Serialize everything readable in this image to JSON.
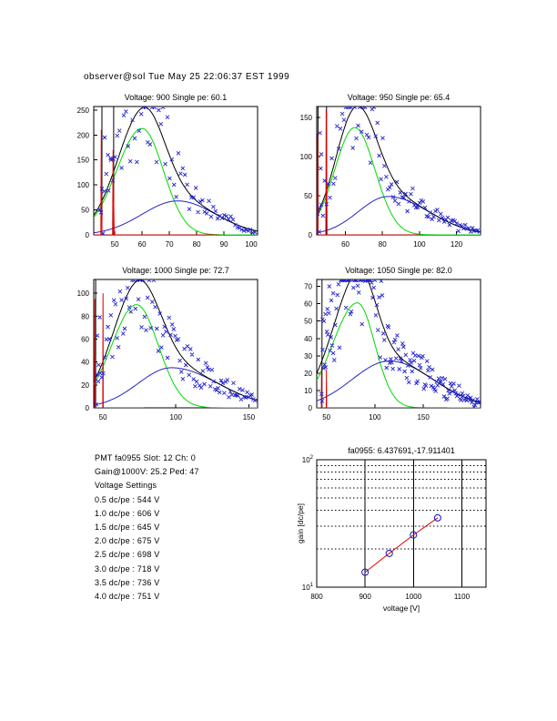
{
  "header": {
    "timestamp": "observer@sol Tue May 25 22:06:37 EST 1999"
  },
  "colors": {
    "fit_total": "#000000",
    "fit_single_pe": "#00d800",
    "fit_background": "#2222cc",
    "pedestal": "#dd0000",
    "marker": "#2222cc",
    "gain_line": "#dd0000",
    "gain_marker": "#2222cc"
  },
  "chart_data": [
    {
      "id": "v900",
      "type": "line",
      "title": "Voltage: 900 Single pe: 60.1",
      "xlim": [
        42.3,
        102.3
      ],
      "ylim": [
        0,
        257
      ],
      "xticks": [
        50,
        60,
        70,
        80,
        90,
        100
      ],
      "yticks": [
        0,
        50,
        100,
        150,
        200,
        250
      ],
      "curves": [
        {
          "name": "single-pe-gauss",
          "color": "#00d800",
          "A": 213,
          "mu": 60,
          "sL": 9.3,
          "sR": 7.8
        },
        {
          "name": "background-gauss",
          "color": "#2222cc",
          "A": 68,
          "mu": 73,
          "sL": 13,
          "sR": 14
        },
        {
          "name": "total-fit",
          "color": "#000000",
          "sum": true
        }
      ],
      "pedestal_lines": [
        {
          "color": "#000000",
          "pts": [
            [
              45.3,
              0
            ],
            [
              45.3,
              9999
            ]
          ]
        },
        {
          "color": "#000000",
          "pts": [
            [
              49.6,
              0
            ],
            [
              49.6,
              9999
            ]
          ]
        },
        {
          "color": "#dd0000",
          "pts": [
            [
              42.3,
              0
            ],
            [
              44.9,
              0
            ],
            [
              45.05,
              210
            ],
            [
              45.3,
              0
            ],
            [
              49.2,
              0
            ],
            [
              49.4,
              170
            ],
            [
              49.55,
              85
            ],
            [
              49.8,
              0
            ],
            [
              88,
              0
            ]
          ]
        }
      ],
      "scatter": {
        "color": "#2222cc",
        "seed": 3,
        "x0": 44.5,
        "x1": 101.5,
        "step": 0.8,
        "amp": 0.42,
        "extra": [
          [
            46.3,
            195
          ],
          [
            45.0,
            45
          ],
          [
            45.7,
            3
          ],
          [
            47.5,
            160
          ],
          [
            48.6,
            150
          ],
          [
            49.5,
            152
          ]
        ]
      }
    },
    {
      "id": "v950",
      "type": "line",
      "title": "Voltage: 950 Single pe: 65.4",
      "xlim": [
        44.5,
        133
      ],
      "ylim": [
        0,
        164
      ],
      "xticks": [
        60,
        80,
        100,
        120
      ],
      "yticks": [
        0,
        50,
        100,
        150
      ],
      "curves": [
        {
          "name": "single-pe-gauss",
          "color": "#00d800",
          "A": 137,
          "mu": 65,
          "sL": 10.8,
          "sR": 11
        },
        {
          "name": "background-gauss",
          "color": "#2222cc",
          "A": 49,
          "mu": 83,
          "sL": 16,
          "sR": 22
        },
        {
          "name": "total-fit",
          "color": "#000000",
          "sum": true
        }
      ],
      "pedestal_lines": [
        {
          "color": "#000000",
          "pts": [
            [
              45.2,
              0
            ],
            [
              45.2,
              9999
            ]
          ]
        },
        {
          "color": "#000000",
          "pts": [
            [
              49.8,
              0
            ],
            [
              49.8,
              9999
            ]
          ]
        },
        {
          "color": "#dd0000",
          "pts": [
            [
              44.5,
              0
            ],
            [
              44.85,
              0
            ],
            [
              45.0,
              130
            ],
            [
              45.2,
              0
            ],
            [
              49.4,
              0
            ],
            [
              49.6,
              160
            ],
            [
              49.75,
              118
            ],
            [
              50.1,
              0
            ],
            [
              100,
              0
            ]
          ]
        }
      ],
      "scatter": {
        "color": "#2222cc",
        "seed": 5,
        "x0": 45,
        "x1": 132.5,
        "step": 0.95,
        "amp": 0.42,
        "extra": [
          [
            45.8,
            4
          ],
          [
            46.2,
            130
          ],
          [
            47.0,
            103
          ],
          [
            46.6,
            85
          ]
        ]
      }
    },
    {
      "id": "v1000",
      "type": "line",
      "title": "Voltage: 1000 Single pe: 72.7",
      "xlim": [
        43.7,
        156
      ],
      "ylim": [
        0,
        112
      ],
      "xticks": [
        50,
        100,
        150
      ],
      "yticks": [
        0,
        20,
        40,
        60,
        80,
        100
      ],
      "curves": [
        {
          "name": "single-pe-gauss",
          "color": "#00d800",
          "A": 90,
          "mu": 73,
          "sL": 17,
          "sR": 15
        },
        {
          "name": "background-gauss",
          "color": "#2222cc",
          "A": 35,
          "mu": 97,
          "sL": 23,
          "sR": 32
        },
        {
          "name": "total-fit",
          "color": "#000000",
          "sum": true
        }
      ],
      "pedestal_lines": [
        {
          "color": "#000000",
          "pts": [
            [
              45.0,
              0
            ],
            [
              45.0,
              9999
            ]
          ]
        },
        {
          "color": "#dd0000",
          "pts": [
            [
              43.7,
              0
            ],
            [
              44.35,
              0
            ],
            [
              44.5,
              95
            ],
            [
              44.62,
              65
            ],
            [
              44.75,
              0
            ],
            [
              49.9,
              0
            ],
            [
              50.05,
              100
            ],
            [
              50.2,
              0
            ],
            [
              78,
              0
            ]
          ]
        }
      ],
      "scatter": {
        "color": "#2222cc",
        "seed": 9,
        "x0": 46,
        "x1": 155,
        "step": 1.05,
        "amp": 0.42,
        "extra": [
          [
            45.3,
            3
          ],
          [
            46.2,
            63
          ],
          [
            47.8,
            79
          ],
          [
            46.8,
            23
          ]
        ]
      }
    },
    {
      "id": "v1050",
      "type": "line",
      "title": "Voltage: 1050 Single pe: 82.0",
      "xlim": [
        40,
        209
      ],
      "ylim": [
        0,
        74
      ],
      "xticks": [
        50,
        100,
        150
      ],
      "yticks": [
        0,
        10,
        20,
        30,
        40,
        50,
        60,
        70
      ],
      "curves": [
        {
          "name": "single-pe-gauss",
          "color": "#00d800",
          "A": 60.5,
          "mu": 82,
          "sL": 25.7,
          "sR": 18
        },
        {
          "name": "background-gauss",
          "color": "#2222cc",
          "A": 27,
          "mu": 115,
          "sL": 38.5,
          "sR": 45
        },
        {
          "name": "total-fit",
          "color": "#000000",
          "sum": true
        }
      ],
      "pedestal_lines": [
        {
          "color": "#000000",
          "pts": [
            [
              45.4,
              0
            ],
            [
              45.4,
              9999
            ]
          ]
        },
        {
          "color": "#dd0000",
          "pts": [
            [
              40,
              0
            ],
            [
              44.8,
              0
            ],
            [
              45.0,
              23
            ],
            [
              45.2,
              0
            ],
            [
              49.8,
              0
            ],
            [
              50.0,
              22
            ],
            [
              50.2,
              0
            ],
            [
              175,
              0
            ]
          ]
        }
      ],
      "scatter": {
        "color": "#2222cc",
        "seed": 11,
        "x0": 46,
        "x1": 208,
        "step": 1.1,
        "amp": 0.45,
        "extra": [
          [
            45,
            8
          ],
          [
            46,
            51
          ],
          [
            47.5,
            50
          ],
          [
            49,
            54
          ],
          [
            51,
            57
          ],
          [
            53,
            70
          ],
          [
            55,
            62
          ],
          [
            57,
            66
          ],
          [
            45.5,
            4
          ]
        ]
      }
    },
    {
      "id": "gain",
      "type": "scatter",
      "title": "fa0955: 6.437691,-17.911401",
      "xlabel": "voltage [V]",
      "ylabel": "gain [dc/pe]",
      "xlim": [
        800,
        1150
      ],
      "ylim_log": [
        10,
        100
      ],
      "xticks": [
        800,
        900,
        1000,
        1100
      ],
      "grid_x_solid": [
        900,
        1000,
        1100
      ],
      "grid_y_dotted": [
        20,
        30,
        40,
        50,
        60,
        70,
        80,
        90
      ],
      "points": {
        "x": [
          900,
          950,
          1000,
          1050
        ],
        "y": [
          13.1,
          18.4,
          25.7,
          35.0
        ]
      }
    }
  ],
  "info": {
    "lines": [
      "PMT fa0955 Slot: 12 Ch: 0",
      "Gain@1000V: 25.2 Ped: 47",
      "Voltage Settings",
      "0.5 dc/pe : 544 V",
      "1.0 dc/pe : 606 V",
      "1.5 dc/pe : 645 V",
      "2.0 dc/pe : 675 V",
      "2.5 dc/pe : 698 V",
      "3.0 dc/pe : 718 V",
      "3.5 dc/pe : 736 V",
      "4.0 dc/pe : 751 V"
    ]
  }
}
